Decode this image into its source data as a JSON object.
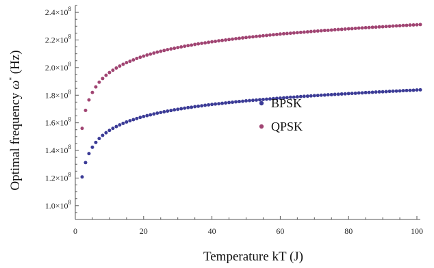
{
  "chart_data": {
    "type": "scatter",
    "title": "",
    "xlabel": "Temperature kT (J)",
    "ylabel_prefix": "Optimal frequency ",
    "ylabel_symbol": "ω",
    "ylabel_sup": "*",
    "ylabel_suffix": " (Hz)",
    "xlim": [
      0,
      101
    ],
    "ylim": [
      90000000,
      245000000
    ],
    "grid": false,
    "legend_position": "center-right",
    "x_ticks": [
      0,
      20,
      40,
      60,
      80,
      100
    ],
    "x_tick_labels": [
      "0",
      "20",
      "40",
      "60",
      "80",
      "100"
    ],
    "y_ticks": [
      100000000,
      120000000,
      140000000,
      160000000,
      180000000,
      200000000,
      220000000,
      240000000
    ],
    "y_tick_labels": [
      {
        "mantissa": "1.0",
        "sep": "×10",
        "exp": "8"
      },
      {
        "mantissa": "1.2",
        "sep": "×10",
        "exp": "8"
      },
      {
        "mantissa": "1.4",
        "sep": "×10",
        "exp": "8"
      },
      {
        "mantissa": "1.6",
        "sep": "×10",
        "exp": "8"
      },
      {
        "mantissa": "1.8",
        "sep": "×10",
        "exp": "8"
      },
      {
        "mantissa": "2.0",
        "sep": "×10",
        "exp": "8"
      },
      {
        "mantissa": "2.2",
        "sep": "×10",
        "exp": "8"
      },
      {
        "mantissa": "2.4",
        "sep": "×10",
        "exp": "8"
      }
    ],
    "x": [
      2,
      3,
      4,
      5,
      6,
      7,
      8,
      9,
      10,
      11,
      12,
      13,
      14,
      15,
      16,
      17,
      18,
      19,
      20,
      21,
      22,
      23,
      24,
      25,
      26,
      27,
      28,
      29,
      30,
      31,
      32,
      33,
      34,
      35,
      36,
      37,
      38,
      39,
      40,
      41,
      42,
      43,
      44,
      45,
      46,
      47,
      48,
      49,
      50,
      51,
      52,
      53,
      54,
      55,
      56,
      57,
      58,
      59,
      60,
      61,
      62,
      63,
      64,
      65,
      66,
      67,
      68,
      69,
      70,
      71,
      72,
      73,
      74,
      75,
      76,
      77,
      78,
      79,
      80,
      81,
      82,
      83,
      84,
      85,
      86,
      87,
      88,
      89,
      90,
      91,
      92,
      93,
      94,
      95,
      96,
      97,
      98,
      99,
      100,
      101
    ],
    "series": [
      {
        "name": "BPSK",
        "color": "#3b3b96",
        "values": [
          120800000,
          131200000,
          137700000,
          142300000,
          145800000,
          148600000,
          150900000,
          152800000,
          154500000,
          156000000,
          157300000,
          158500000,
          159600000,
          160600000,
          161500000,
          162300000,
          163100000,
          163900000,
          164600000,
          165200000,
          165800000,
          166400000,
          167000000,
          167500000,
          168000000,
          168500000,
          168900000,
          169400000,
          169800000,
          170200000,
          170600000,
          171000000,
          171300000,
          171700000,
          172000000,
          172300000,
          172700000,
          173000000,
          173300000,
          173600000,
          173800000,
          174100000,
          174400000,
          174700000,
          174900000,
          175200000,
          175400000,
          175600000,
          175900000,
          176100000,
          176300000,
          176500000,
          176700000,
          176900000,
          177100000,
          177300000,
          177500000,
          177700000,
          177900000,
          178100000,
          178300000,
          178500000,
          178600000,
          178800000,
          179000000,
          179200000,
          179300000,
          179500000,
          179700000,
          179800000,
          180000000,
          180100000,
          180300000,
          180400000,
          180600000,
          180700000,
          180900000,
          181000000,
          181200000,
          181300000,
          181400000,
          181600000,
          181700000,
          181900000,
          182000000,
          182100000,
          182300000,
          182400000,
          182500000,
          182600000,
          182800000,
          182900000,
          183000000,
          183100000,
          183300000,
          183400000,
          183500000,
          183600000,
          183800000,
          183900000
        ]
      },
      {
        "name": "QPSK",
        "color": "#a04472",
        "values": [
          156000000,
          169000000,
          176600000,
          182000000,
          186000000,
          189400000,
          192100000,
          194400000,
          196400000,
          198100000,
          199700000,
          201100000,
          202400000,
          203600000,
          204600000,
          205600000,
          206600000,
          207500000,
          208300000,
          209100000,
          209800000,
          210500000,
          211200000,
          211800000,
          212400000,
          213000000,
          213500000,
          214000000,
          214500000,
          215000000,
          215500000,
          215900000,
          216300000,
          216800000,
          217200000,
          217600000,
          217900000,
          218300000,
          218700000,
          219000000,
          219400000,
          219700000,
          220000000,
          220300000,
          220600000,
          220900000,
          221200000,
          221500000,
          221800000,
          222100000,
          222300000,
          222600000,
          222800000,
          223100000,
          223300000,
          223600000,
          223800000,
          224000000,
          224300000,
          224500000,
          224700000,
          224900000,
          225100000,
          225300000,
          225500000,
          225700000,
          225900000,
          226100000,
          226300000,
          226500000,
          226700000,
          226900000,
          227000000,
          227200000,
          227400000,
          227600000,
          227700000,
          227900000,
          228100000,
          228200000,
          228400000,
          228600000,
          228700000,
          228900000,
          229000000,
          229200000,
          229300000,
          229500000,
          229600000,
          229800000,
          229900000,
          230100000,
          230200000,
          230300000,
          230500000,
          230600000,
          230800000,
          230900000,
          231000000,
          231200000
        ]
      }
    ]
  }
}
